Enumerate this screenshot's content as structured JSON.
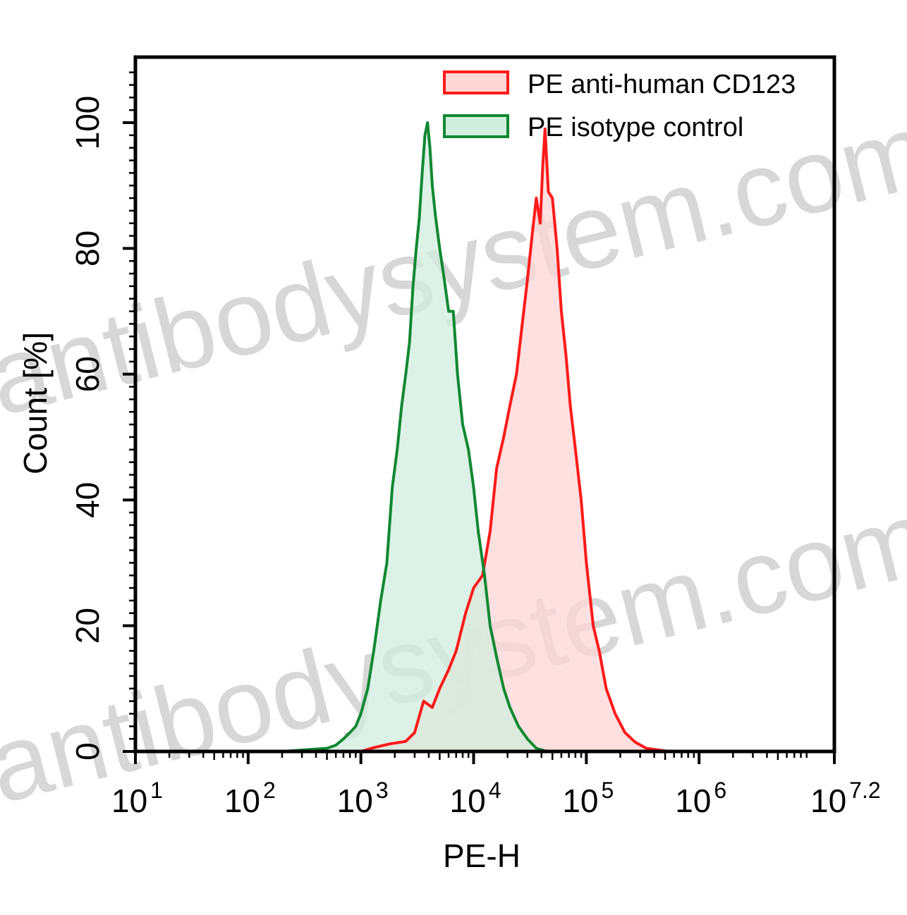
{
  "watermark": "antibodysystem.com",
  "chart_data": {
    "type": "area",
    "xlabel": "PE-H",
    "ylabel": "Count [%]",
    "xscale": "log",
    "xlim": [
      10,
      15848931.9
    ],
    "ylim": [
      0,
      100
    ],
    "x_ticks": [
      {
        "base": "10",
        "exp": "1",
        "value": 10
      },
      {
        "base": "10",
        "exp": "2",
        "value": 100
      },
      {
        "base": "10",
        "exp": "3",
        "value": 1000
      },
      {
        "base": "10",
        "exp": "4",
        "value": 10000
      },
      {
        "base": "10",
        "exp": "5",
        "value": 100000
      },
      {
        "base": "10",
        "exp": "6",
        "value": 1000000
      },
      {
        "base": "10",
        "exp": "7.2",
        "value": 15848931.9
      }
    ],
    "y_ticks": [
      "0",
      "20",
      "40",
      "60",
      "80",
      "100"
    ],
    "legend_position": "top-right",
    "grid": false,
    "series": [
      {
        "name": "PE anti-human CD123",
        "color": "#ff1a1a",
        "fill": "#ffd6d6",
        "x": [
          1000,
          1300,
          1800,
          2500,
          3000,
          3600,
          4300,
          5000,
          6000,
          7000,
          8500,
          10000,
          12000,
          14000,
          16000,
          18500,
          21000,
          24000,
          27000,
          30000,
          33000,
          36000,
          39000,
          41000,
          43000,
          46000,
          50000,
          55000,
          60000,
          66000,
          72000,
          80000,
          90000,
          100000,
          115000,
          130000,
          150000,
          180000,
          220000,
          270000,
          340000,
          450000,
          550000
        ],
        "y": [
          0,
          0.6,
          1.2,
          1.6,
          3,
          8,
          7,
          10,
          13,
          16,
          22,
          26,
          28,
          35,
          45,
          50,
          55,
          60,
          68,
          75,
          82,
          88,
          84,
          93,
          99,
          89,
          88,
          80,
          70,
          63,
          55,
          48,
          40,
          30,
          20,
          16,
          10,
          6,
          3,
          1.5,
          0.5,
          0.2,
          0
        ]
      },
      {
        "name": "PE isotype control",
        "color": "#118833",
        "fill": "#d2eedd",
        "x": [
          200,
          350,
          500,
          600,
          700,
          800,
          900,
          1000,
          1150,
          1300,
          1500,
          1700,
          1900,
          2100,
          2300,
          2500,
          2700,
          2900,
          3100,
          3300,
          3500,
          3700,
          3900,
          4100,
          4300,
          4600,
          5000,
          5500,
          6000,
          6600,
          7200,
          8000,
          9000,
          10000,
          11000,
          12500,
          14000,
          16000,
          18500,
          21000,
          25000,
          30000,
          36000,
          45000
        ],
        "y": [
          0,
          0.3,
          0.5,
          1,
          2,
          3,
          4,
          6,
          10,
          16,
          24,
          30,
          42,
          48,
          55,
          60,
          65,
          74,
          80,
          85,
          92,
          98,
          100,
          96,
          90,
          85,
          80,
          75,
          70,
          70,
          60,
          52,
          48,
          42,
          35,
          28,
          20,
          15,
          10,
          7,
          4,
          2,
          0.5,
          0
        ]
      }
    ]
  }
}
